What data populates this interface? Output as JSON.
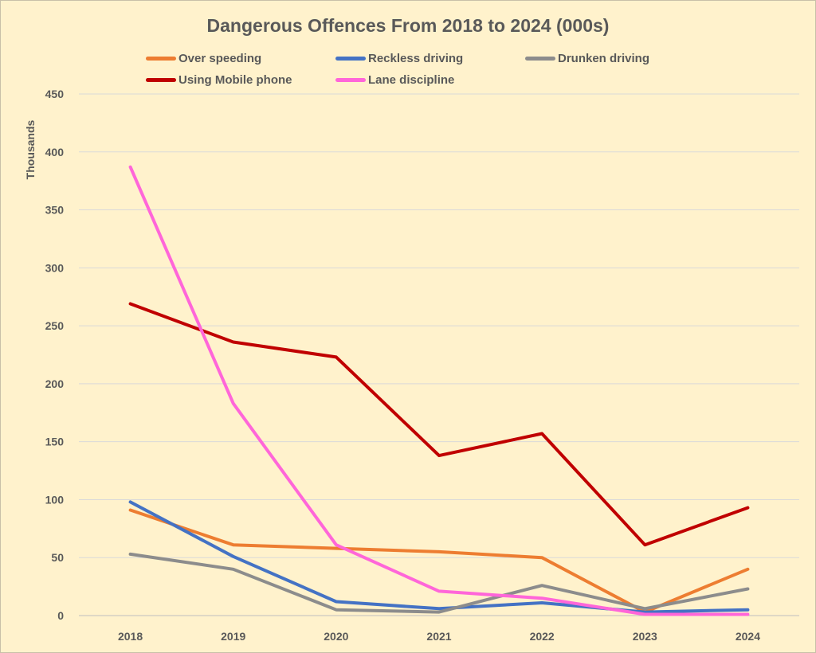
{
  "chart_data": {
    "type": "line",
    "title": "Dangerous Offences From 2018 to 2024 (000s)",
    "xlabel": "",
    "ylabel": "Thousands",
    "x": [
      "2018",
      "2019",
      "2020",
      "2021",
      "2022",
      "2023",
      "2024"
    ],
    "ylim": [
      0,
      450
    ],
    "yticks": [
      0,
      50,
      100,
      150,
      200,
      250,
      300,
      350,
      400,
      450
    ],
    "grid": true,
    "legend_position": "top",
    "series": [
      {
        "name": "Over speeding",
        "color": "#ed7d31",
        "values": [
          91,
          61,
          58,
          55,
          50,
          3,
          40
        ]
      },
      {
        "name": "Reckless driving",
        "color": "#4472c4",
        "values": [
          98,
          51,
          12,
          6,
          11,
          3,
          5
        ]
      },
      {
        "name": "Drunken driving",
        "color": "#8c8c8c",
        "values": [
          53,
          40,
          5,
          3,
          26,
          6,
          23
        ]
      },
      {
        "name": "Using Mobile phone",
        "color": "#c00000",
        "values": [
          269,
          236,
          223,
          138,
          157,
          61,
          93
        ]
      },
      {
        "name": "Lane discipline",
        "color": "#ff66d9",
        "values": [
          387,
          183,
          61,
          21,
          15,
          1,
          1
        ]
      }
    ]
  }
}
